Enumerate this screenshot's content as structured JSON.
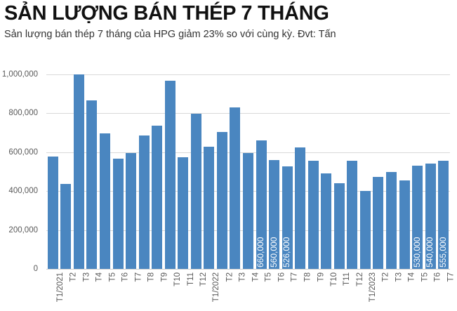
{
  "header": {
    "title": "SẢN LƯỢNG BÁN THÉP 7 THÁNG",
    "subtitle": "Sản lượng bán thép 7 tháng của HPG giảm 23% so với cùng kỳ. Đvt: Tấn"
  },
  "colors": {
    "bar": "#4a86c0",
    "grid": "#d9d9d9",
    "axis_text": "#595959",
    "bar_label": "#ffffff"
  },
  "y_axis": {
    "ticks": [
      "1,000,000",
      "800,000",
      "600,000",
      "400,000",
      "200,000",
      "0"
    ]
  },
  "chart_data": {
    "type": "bar",
    "title": "SẢN LƯỢNG BÁN THÉP 7 THÁNG",
    "subtitle": "Sản lượng bán thép 7 tháng của HPG giảm 23% so với cùng kỳ. Đvt: Tấn",
    "xlabel": "",
    "ylabel": "Tấn",
    "ylim": [
      0,
      1000000
    ],
    "yticks": [
      0,
      200000,
      400000,
      600000,
      800000,
      1000000
    ],
    "grid": true,
    "legend": null,
    "categories": [
      "T1/2021",
      "T2",
      "T3",
      "T4",
      "T5",
      "T6",
      "T7",
      "T8",
      "T9",
      "T10",
      "T11",
      "T12",
      "T1/2022",
      "T2",
      "T3",
      "T4",
      "T5",
      "T6",
      "T7",
      "T8",
      "T9",
      "T10",
      "T11",
      "T12",
      "T1/2023",
      "T2",
      "T3",
      "T4",
      "T5",
      "T6",
      "T7"
    ],
    "values": [
      578000,
      437000,
      1000000,
      866000,
      697000,
      567000,
      596000,
      686000,
      736000,
      968000,
      574000,
      798000,
      628000,
      704000,
      830000,
      596000,
      660000,
      560000,
      526000,
      625000,
      556000,
      491000,
      440000,
      556000,
      401000,
      473000,
      498000,
      455000,
      530000,
      540000,
      555000
    ],
    "data_labels": {
      "16": "660,000",
      "17": "560,000",
      "18": "526,000",
      "28": "530,000",
      "29": "540,000",
      "30": "555,000"
    }
  }
}
